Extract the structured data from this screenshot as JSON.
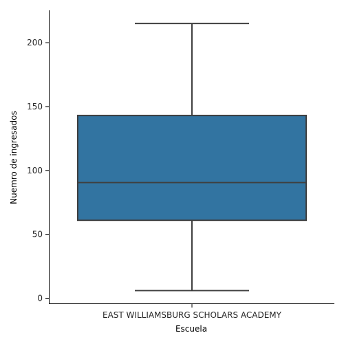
{
  "chart_data": {
    "type": "box",
    "categories": [
      "EAST WILLIAMSBURG SCHOLARS ACADEMY"
    ],
    "boxes": [
      {
        "category": "EAST WILLIAMSBURG SCHOLARS ACADEMY",
        "whisker_low": 6,
        "q1": 61,
        "median": 90.5,
        "q3": 143,
        "whisker_high": 215
      }
    ],
    "xlabel": "Escuela",
    "ylabel": "Nuemro de ingresados",
    "yticks": [
      0,
      50,
      100,
      150,
      200
    ],
    "ylim": [
      -5,
      225
    ],
    "colors": {
      "box_fill": "#3274a1",
      "lines": "#3f3f3f",
      "axis": "#000000"
    }
  }
}
